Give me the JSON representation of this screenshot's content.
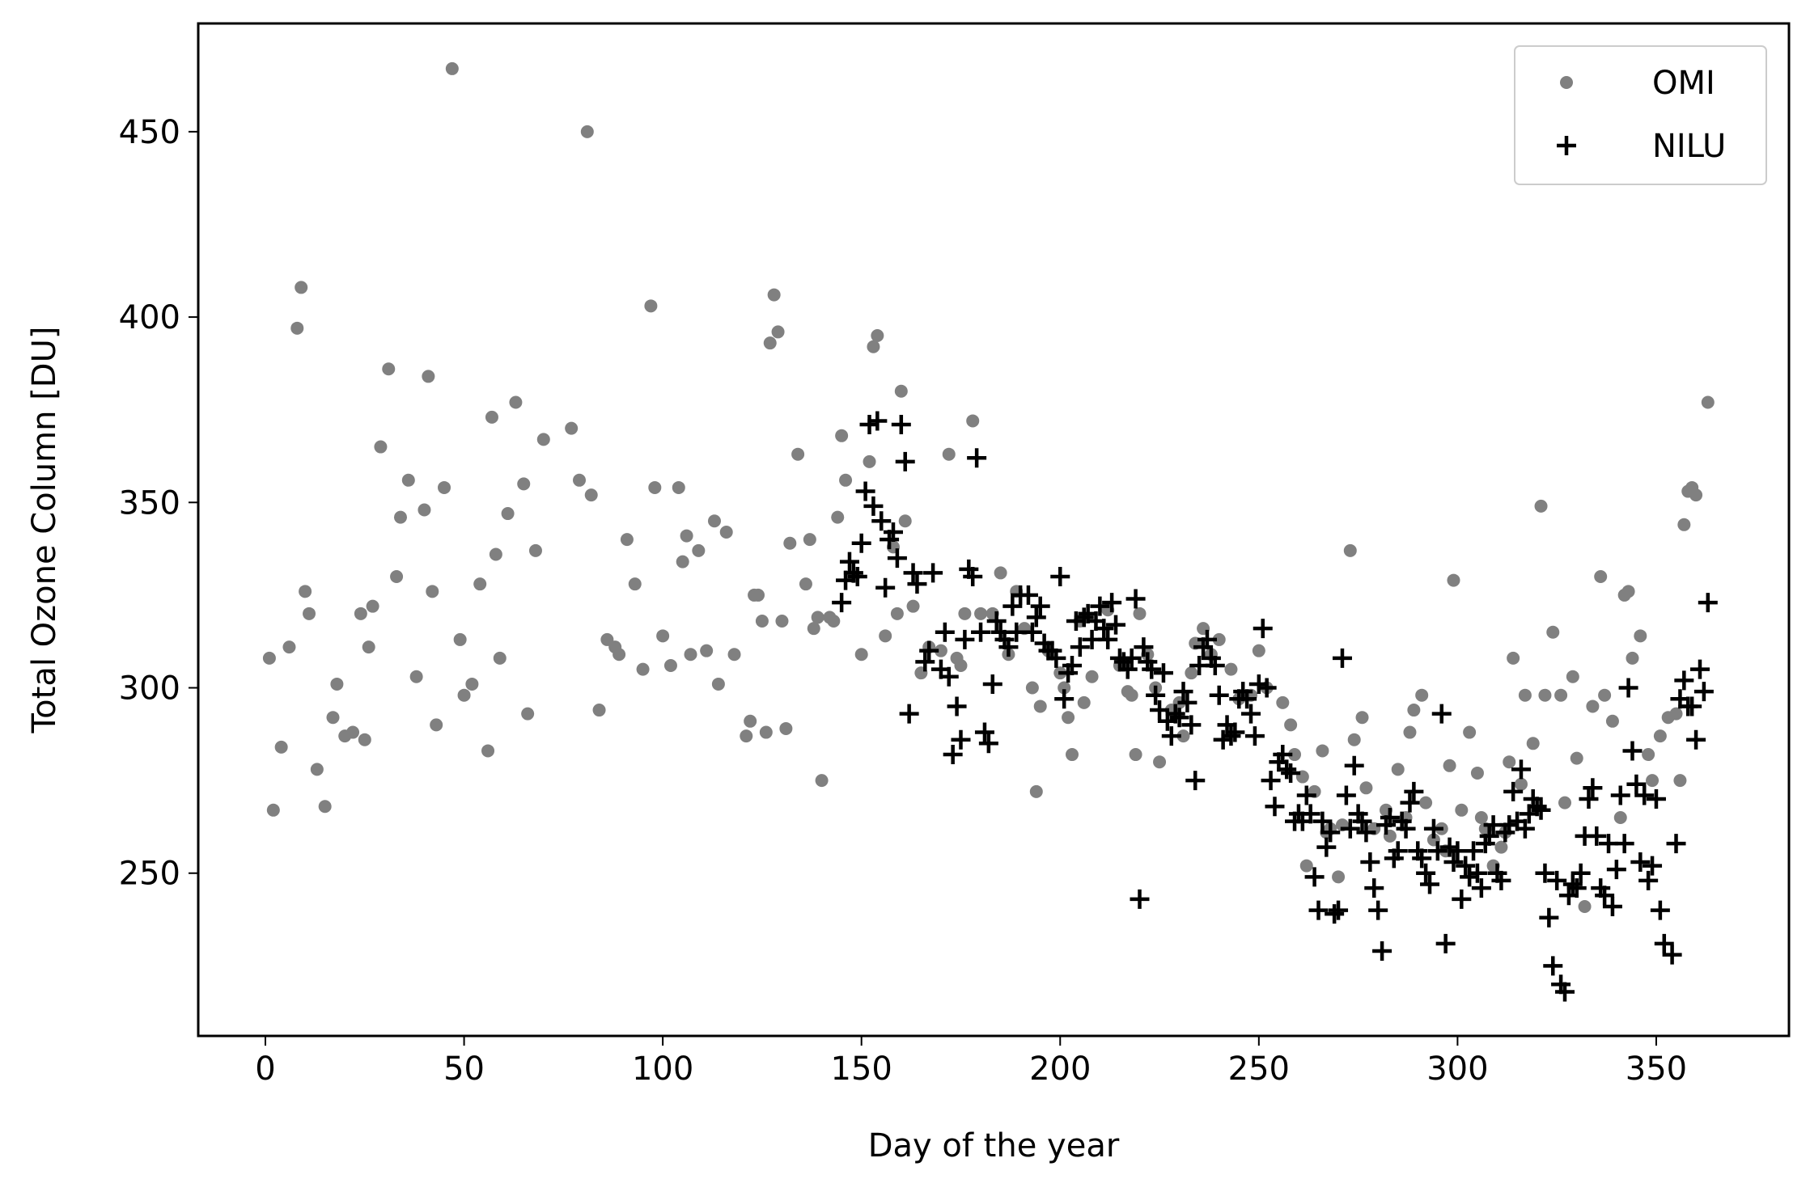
{
  "chart_data": {
    "type": "scatter",
    "x_label": "Day of the year",
    "y_label": "Total Ozone Column  [DU]",
    "xlim": [
      -16.9,
      383.4
    ],
    "ylim": [
      206.1,
      479.2
    ],
    "xticks": [
      0,
      50,
      100,
      150,
      200,
      250,
      300,
      350
    ],
    "yticks": [
      250,
      300,
      350,
      400,
      450
    ],
    "legend": "upper right",
    "series": [
      {
        "name": "OMI",
        "color": "#808080",
        "marker": "circle",
        "x": [
          1,
          2,
          4,
          6,
          8,
          9,
          10,
          11,
          13,
          15,
          17,
          18,
          20,
          22,
          24,
          25,
          26,
          27,
          29,
          31,
          33,
          34,
          36,
          38,
          40,
          41,
          42,
          43,
          45,
          47,
          49,
          50,
          52,
          54,
          56,
          57,
          58,
          59,
          61,
          63,
          65,
          66,
          68,
          70,
          77,
          79,
          81,
          82,
          84,
          86,
          88,
          89,
          91,
          93,
          95,
          97,
          98,
          100,
          102,
          104,
          105,
          106,
          107,
          109,
          111,
          113,
          114,
          116,
          118,
          121,
          122,
          123,
          124,
          125,
          126,
          127,
          128,
          129,
          130,
          131,
          132,
          134,
          136,
          137,
          138,
          139,
          140,
          142,
          143,
          144,
          145,
          146,
          148,
          150,
          152,
          153,
          154,
          156,
          158,
          159,
          160,
          161,
          163,
          165,
          167,
          170,
          172,
          174,
          175,
          176,
          178,
          180,
          183,
          185,
          187,
          189,
          191,
          193,
          194,
          195,
          197,
          200,
          201,
          202,
          203,
          205,
          206,
          208,
          212,
          215,
          217,
          218,
          219,
          220,
          222,
          224,
          225,
          228,
          230,
          231,
          233,
          234,
          236,
          238,
          240,
          243,
          245,
          248,
          250,
          252,
          256,
          258,
          259,
          261,
          262,
          264,
          266,
          267,
          268,
          270,
          271,
          273,
          274,
          276,
          277,
          279,
          282,
          283,
          285,
          287,
          288,
          289,
          291,
          292,
          294,
          296,
          297,
          298,
          299,
          301,
          303,
          305,
          306,
          307,
          309,
          311,
          312,
          313,
          314,
          316,
          317,
          319,
          321,
          322,
          324,
          326,
          327,
          329,
          330,
          332,
          334,
          336,
          337,
          339,
          341,
          342,
          343,
          344,
          346,
          348,
          349,
          351,
          353,
          355,
          356,
          357,
          358,
          359,
          360,
          363
        ],
        "values": [
          308,
          267,
          284,
          311,
          397,
          408,
          326,
          320,
          278,
          268,
          292,
          301,
          287,
          288,
          320,
          286,
          311,
          322,
          365,
          386,
          330,
          346,
          356,
          303,
          348,
          384,
          326,
          290,
          354,
          467,
          313,
          298,
          301,
          328,
          283,
          373,
          336,
          308,
          347,
          377,
          355,
          293,
          337,
          367,
          370,
          356,
          450,
          352,
          294,
          313,
          311,
          309,
          340,
          328,
          305,
          403,
          354,
          314,
          306,
          354,
          334,
          341,
          309,
          337,
          310,
          345,
          301,
          342,
          309,
          287,
          291,
          325,
          325,
          318,
          288,
          393,
          406,
          396,
          318,
          289,
          339,
          363,
          328,
          340,
          316,
          319,
          275,
          319,
          318,
          346,
          368,
          356,
          330,
          309,
          361,
          392,
          395,
          314,
          338,
          320,
          380,
          345,
          322,
          304,
          311,
          310,
          363,
          308,
          306,
          320,
          372,
          320,
          320,
          331,
          309,
          326,
          316,
          300,
          272,
          295,
          310,
          304,
          300,
          292,
          282,
          318,
          296,
          303,
          321,
          306,
          299,
          298,
          282,
          320,
          309,
          300,
          280,
          294,
          296,
          287,
          304,
          312,
          316,
          309,
          313,
          305,
          297,
          298,
          310,
          300,
          296,
          290,
          282,
          276,
          252,
          272,
          283,
          261,
          262,
          249,
          263,
          337,
          286,
          292,
          273,
          262,
          267,
          260,
          278,
          265,
          288,
          294,
          298,
          269,
          259,
          262,
          256,
          279,
          329,
          267,
          288,
          277,
          265,
          262,
          252,
          257,
          261,
          280,
          308,
          274,
          298,
          285,
          349,
          298,
          315,
          298,
          269,
          303,
          281,
          241,
          295,
          330,
          298,
          291,
          265,
          325,
          326,
          308,
          314,
          282,
          275,
          287,
          292,
          293,
          275,
          344,
          353,
          354,
          352,
          377
        ]
      },
      {
        "name": "NILU",
        "color": "#000000",
        "marker": "plus",
        "x": [
          145,
          146,
          147,
          148,
          149,
          150,
          151,
          152,
          153,
          154,
          155,
          156,
          157,
          158,
          159,
          160,
          161,
          162,
          163,
          164,
          166,
          167,
          168,
          170,
          171,
          172,
          173,
          174,
          175,
          176,
          177,
          178,
          179,
          180,
          181,
          182,
          183,
          184,
          185,
          186,
          187,
          188,
          189,
          190,
          192,
          193,
          194,
          195,
          196,
          197,
          198,
          199,
          200,
          201,
          202,
          203,
          204,
          205,
          206,
          207,
          208,
          209,
          210,
          211,
          212,
          213,
          214,
          215,
          216,
          217,
          218,
          219,
          220,
          221,
          222,
          223,
          224,
          225,
          226,
          227,
          228,
          229,
          230,
          231,
          232,
          233,
          234,
          235,
          236,
          237,
          238,
          239,
          240,
          241,
          242,
          243,
          244,
          245,
          246,
          247,
          248,
          249,
          250,
          251,
          252,
          253,
          254,
          255,
          256,
          257,
          258,
          259,
          260,
          261,
          262,
          263,
          264,
          265,
          266,
          267,
          268,
          269,
          270,
          271,
          272,
          273,
          274,
          275,
          276,
          277,
          278,
          279,
          280,
          281,
          282,
          283,
          284,
          285,
          286,
          287,
          288,
          289,
          290,
          291,
          292,
          293,
          294,
          295,
          296,
          297,
          298,
          299,
          300,
          301,
          302,
          303,
          304,
          305,
          306,
          307,
          308,
          309,
          310,
          311,
          312,
          313,
          314,
          315,
          316,
          317,
          318,
          319,
          320,
          321,
          322,
          323,
          324,
          325,
          326,
          327,
          328,
          329,
          330,
          331,
          332,
          333,
          334,
          335,
          336,
          337,
          338,
          339,
          340,
          341,
          342,
          343,
          344,
          345,
          346,
          347,
          348,
          349,
          350,
          351,
          352,
          354,
          355,
          356,
          357,
          358,
          359,
          360,
          361,
          362,
          363
        ],
        "values": [
          323,
          329,
          334,
          331,
          330,
          339,
          353,
          371,
          349,
          372,
          345,
          327,
          340,
          342,
          335,
          371,
          361,
          293,
          331,
          328,
          307,
          310,
          331,
          305,
          315,
          303,
          282,
          295,
          286,
          313,
          332,
          330,
          362,
          315,
          288,
          285,
          301,
          318,
          315,
          313,
          311,
          322,
          315,
          325,
          325,
          315,
          319,
          322,
          312,
          310,
          310,
          308,
          330,
          297,
          304,
          306,
          318,
          311,
          319,
          320,
          313,
          318,
          322,
          316,
          313,
          323,
          317,
          308,
          307,
          305,
          308,
          324,
          243,
          311,
          307,
          305,
          298,
          294,
          304,
          291,
          287,
          293,
          292,
          299,
          296,
          290,
          275,
          306,
          311,
          313,
          308,
          306,
          298,
          286,
          290,
          287,
          288,
          297,
          299,
          297,
          293,
          287,
          301,
          316,
          300,
          275,
          268,
          280,
          282,
          278,
          277,
          264,
          266,
          264,
          271,
          266,
          249,
          240,
          264,
          257,
          261,
          239,
          240,
          308,
          271,
          262,
          279,
          266,
          264,
          261,
          253,
          246,
          240,
          229,
          263,
          265,
          254,
          256,
          264,
          262,
          269,
          272,
          256,
          254,
          250,
          247,
          262,
          256,
          293,
          231,
          257,
          253,
          256,
          243,
          252,
          249,
          256,
          250,
          246,
          258,
          260,
          263,
          250,
          248,
          261,
          263,
          272,
          264,
          278,
          262,
          266,
          270,
          268,
          267,
          250,
          238,
          225,
          248,
          220,
          218,
          244,
          247,
          246,
          250,
          260,
          270,
          273,
          260,
          246,
          244,
          258,
          241,
          251,
          271,
          258,
          300,
          283,
          274,
          253,
          271,
          248,
          252,
          270,
          240,
          231,
          228,
          258,
          297,
          302,
          295,
          295,
          286,
          305,
          299,
          323
        ]
      }
    ]
  }
}
